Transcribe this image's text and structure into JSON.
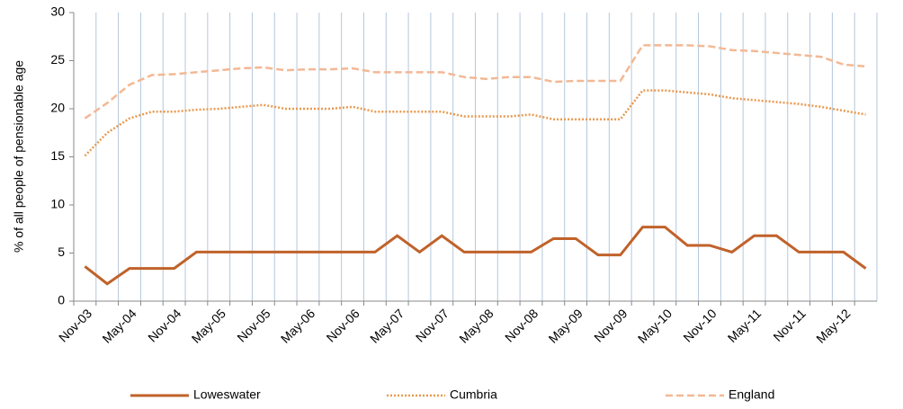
{
  "chart_data": {
    "type": "line",
    "y_label": "% of all people of pensionable age",
    "categories": [
      "Nov-03",
      null,
      "May-04",
      null,
      "Nov-04",
      null,
      "May-05",
      null,
      "Nov-05",
      null,
      "May-06",
      null,
      "Nov-06",
      null,
      "May-07",
      null,
      "Nov-07",
      null,
      "May-08",
      null,
      "Nov-08",
      null,
      "May-09",
      null,
      "Nov-09",
      null,
      "May-10",
      null,
      "Nov-10",
      null,
      "May-11",
      null,
      "Nov-11",
      null,
      "May-12",
      null
    ],
    "series": [
      {
        "name": "Loweswater",
        "color": "#c0622a",
        "dash": "solid",
        "values": [
          3.6,
          1.8,
          3.4,
          3.4,
          3.4,
          5.1,
          5.1,
          5.1,
          5.1,
          5.1,
          5.1,
          5.1,
          5.1,
          5.1,
          6.8,
          5.1,
          6.8,
          5.1,
          5.1,
          5.1,
          5.1,
          6.5,
          6.5,
          4.8,
          4.8,
          7.7,
          7.7,
          5.8,
          5.8,
          5.1,
          6.8,
          6.8,
          5.1,
          5.1,
          5.1,
          3.4
        ]
      },
      {
        "name": "Cumbria",
        "color": "#e9994f",
        "dash": "dotted",
        "values": [
          15.1,
          17.5,
          19.0,
          19.7,
          19.7,
          19.9,
          20.0,
          20.2,
          20.4,
          20.0,
          20.0,
          20.0,
          20.2,
          19.7,
          19.7,
          19.7,
          19.7,
          19.2,
          19.2,
          19.2,
          19.4,
          18.9,
          18.9,
          18.9,
          18.9,
          21.9,
          21.9,
          21.7,
          21.5,
          21.1,
          20.9,
          20.7,
          20.5,
          20.2,
          19.8,
          19.4
        ]
      },
      {
        "name": "England",
        "color": "#f3b894",
        "dash": "dashed",
        "values": [
          19.0,
          20.6,
          22.5,
          23.5,
          23.6,
          23.8,
          24.0,
          24.2,
          24.3,
          24.0,
          24.1,
          24.1,
          24.2,
          23.8,
          23.8,
          23.8,
          23.8,
          23.3,
          23.1,
          23.3,
          23.3,
          22.8,
          22.9,
          22.9,
          22.9,
          26.6,
          26.6,
          26.6,
          26.5,
          26.1,
          26.0,
          25.8,
          25.6,
          25.4,
          24.6,
          24.4
        ]
      }
    ],
    "ylim": [
      0,
      30
    ],
    "yticks": [
      0,
      5,
      10,
      15,
      20,
      25,
      30
    ],
    "vertical_grid": true,
    "legend": "bottom"
  }
}
